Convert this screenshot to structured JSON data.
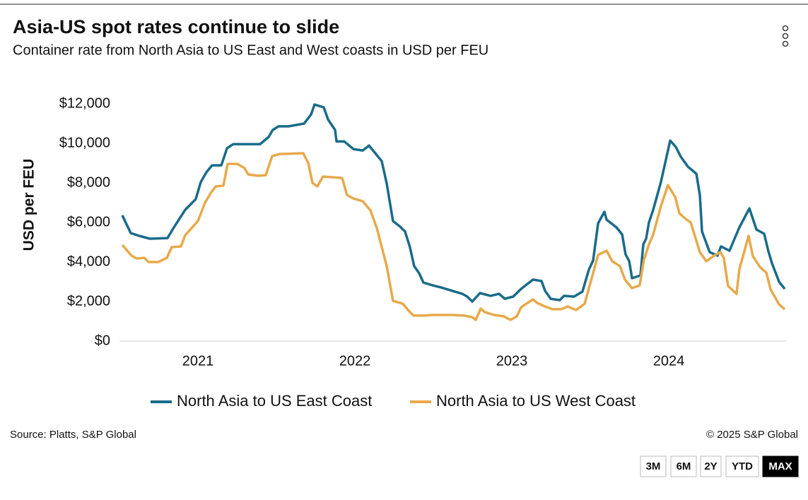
{
  "chart_data": {
    "type": "line",
    "title": "Asia-US spot rates continue to slide",
    "subtitle": "Container rate from North Asia to US East and West coasts in USD per FEU",
    "y_label": "USD per FEU",
    "xlim": [
      2020.5,
      2024.75
    ],
    "xticks": [
      2021,
      2022,
      2023,
      2024
    ],
    "ylim": [
      0,
      12000
    ],
    "yticks": [
      {
        "value": 0,
        "label": "$0"
      },
      {
        "value": 2000,
        "label": "$2,000"
      },
      {
        "value": 4000,
        "label": "$4,000"
      },
      {
        "value": 6000,
        "label": "$6,000"
      },
      {
        "value": 8000,
        "label": "$8,000"
      },
      {
        "value": 10000,
        "label": "$10,000"
      },
      {
        "value": 12000,
        "label": "$12,000"
      }
    ],
    "legend": "bottom",
    "series": [
      {
        "name": "North Asia to US East Coast",
        "color": "#1a6b8a",
        "x": [
          2020.518,
          2020.572,
          2020.626,
          2020.694,
          2020.806,
          2020.847,
          2020.919,
          2020.986,
          2021.018,
          2021.054,
          2021.09,
          2021.149,
          2021.185,
          2021.225,
          2021.396,
          2021.45,
          2021.477,
          2021.514,
          2021.577,
          2021.676,
          2021.721,
          2021.743,
          2021.802,
          2021.829,
          2021.874,
          2021.883,
          2021.932,
          2021.991,
          2022.05,
          2022.09,
          2022.171,
          2022.203,
          2022.243,
          2022.288,
          2022.32,
          2022.351,
          2022.378,
          2022.41,
          2022.437,
          2022.495,
          2022.55,
          2022.622,
          2022.685,
          2022.716,
          2022.748,
          2022.797,
          2022.865,
          2022.919,
          2022.955,
          2023.009,
          2023.059,
          2023.135,
          2023.189,
          2023.212,
          2023.248,
          2023.306,
          2023.333,
          2023.396,
          2023.45,
          2023.491,
          2023.518,
          2023.55,
          2023.59,
          2023.604,
          2023.667,
          2023.703,
          2023.725,
          2023.748,
          2023.766,
          2023.82,
          2023.838,
          2023.856,
          2023.874,
          2023.901,
          2023.95,
          2024.009,
          2024.045,
          2024.077,
          2024.122,
          2024.176,
          2024.198,
          2024.212,
          2024.261,
          2024.311,
          2024.333,
          2024.387,
          2024.45,
          2024.514,
          2024.559,
          2024.608,
          2024.635,
          2024.658,
          2024.703,
          2024.739
        ],
        "values": [
          6360,
          5460,
          5320,
          5180,
          5210,
          5750,
          6640,
          7180,
          8040,
          8540,
          8890,
          8890,
          9750,
          9960,
          9960,
          10320,
          10680,
          10860,
          10860,
          11000,
          11460,
          11960,
          11820,
          11210,
          10680,
          10100,
          10100,
          9710,
          9640,
          9890,
          9100,
          7960,
          6070,
          5790,
          5540,
          4750,
          3790,
          3430,
          2960,
          2820,
          2710,
          2540,
          2390,
          2250,
          2000,
          2430,
          2290,
          2390,
          2140,
          2250,
          2640,
          3110,
          3040,
          2540,
          2140,
          2070,
          2290,
          2250,
          2500,
          3610,
          4070,
          5960,
          6540,
          6140,
          5750,
          5390,
          4390,
          4040,
          3180,
          3320,
          4890,
          5180,
          6000,
          6640,
          8040,
          10140,
          9820,
          9320,
          8820,
          8460,
          7390,
          5540,
          4500,
          4320,
          4790,
          4570,
          5750,
          6710,
          5640,
          5430,
          4540,
          3930,
          3000,
          2640
        ]
      },
      {
        "name": "North Asia to US West Coast",
        "color": "#e8a94a",
        "x": [
          2020.518,
          2020.577,
          2020.608,
          2020.658,
          2020.685,
          2020.748,
          2020.802,
          2020.833,
          2020.892,
          2020.919,
          2020.968,
          2021.0,
          2021.045,
          2021.086,
          2021.113,
          2021.162,
          2021.189,
          2021.252,
          2021.297,
          2021.32,
          2021.383,
          2021.432,
          2021.473,
          2021.523,
          2021.671,
          2021.703,
          2021.73,
          2021.761,
          2021.797,
          2021.919,
          2021.95,
          2021.991,
          2022.05,
          2022.099,
          2022.14,
          2022.203,
          2022.243,
          2022.306,
          2022.347,
          2022.374,
          2022.437,
          2022.495,
          2022.626,
          2022.698,
          2022.748,
          2022.77,
          2022.802,
          2022.829,
          2022.887,
          2022.95,
          2022.991,
          2023.032,
          2023.059,
          2023.135,
          2023.162,
          2023.212,
          2023.261,
          2023.315,
          2023.356,
          2023.41,
          2023.464,
          2023.514,
          2023.55,
          2023.604,
          2023.64,
          2023.689,
          2023.721,
          2023.766,
          2023.815,
          2023.842,
          2023.874,
          2023.901,
          2023.95,
          2023.995,
          2024.041,
          2024.068,
          2024.108,
          2024.14,
          2024.198,
          2024.239,
          2024.297,
          2024.329,
          2024.351,
          2024.378,
          2024.432,
          2024.45,
          2024.509,
          2024.536,
          2024.581,
          2024.622,
          2024.649,
          2024.703,
          2024.739
        ],
        "values": [
          4860,
          4320,
          4180,
          4210,
          4000,
          4000,
          4210,
          4750,
          4790,
          5360,
          5790,
          6070,
          7000,
          7540,
          7820,
          7860,
          8960,
          8960,
          8750,
          8430,
          8360,
          8390,
          9360,
          9460,
          9500,
          9000,
          8000,
          7820,
          8320,
          8250,
          7390,
          7210,
          7070,
          6610,
          5710,
          3790,
          2040,
          1890,
          1500,
          1290,
          1290,
          1320,
          1320,
          1290,
          1210,
          1070,
          1640,
          1460,
          1320,
          1250,
          1070,
          1250,
          1710,
          2110,
          1930,
          1750,
          1610,
          1610,
          1750,
          1570,
          1890,
          3320,
          4360,
          4570,
          4040,
          3790,
          3110,
          2680,
          2820,
          4110,
          4890,
          5390,
          6820,
          7890,
          7290,
          6460,
          6180,
          6000,
          4500,
          4040,
          4360,
          4500,
          4210,
          2790,
          2390,
          3640,
          5320,
          4290,
          3750,
          3460,
          2610,
          1860,
          1610
        ]
      }
    ]
  },
  "footer": {
    "source": "Source: Platts, S&P Global",
    "copyright": "© 2025 S&P Global"
  },
  "controls": [
    "3M",
    "6M",
    "2Y",
    "YTD",
    "MAX"
  ]
}
